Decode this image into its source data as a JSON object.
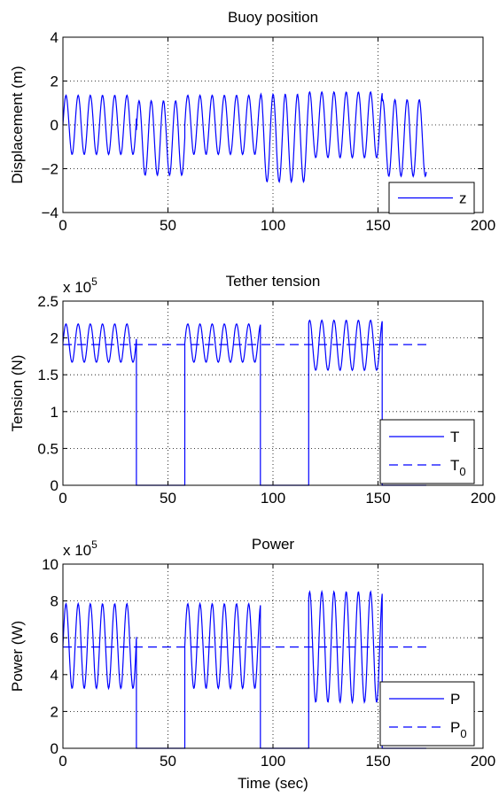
{
  "chart_data": [
    {
      "type": "line",
      "title": "Buoy position",
      "ylabel": "Displacement (m)",
      "xlabel": "",
      "exponent_label": "",
      "xlim": [
        0,
        200
      ],
      "ylim": [
        -4,
        4
      ],
      "xticks": [
        0,
        50,
        100,
        150,
        200
      ],
      "yticks": [
        -4,
        -2,
        0,
        2,
        4
      ],
      "ytick_labels": [
        "−4",
        "−2",
        "0",
        "2",
        "4"
      ],
      "grid": true,
      "legend_position": "bottom-right",
      "series": [
        {
          "name": "z",
          "style": "solid",
          "color": "#0000ff",
          "wave_period": 5.8,
          "segments": [
            {
              "t_start": 0,
              "t_end": 35,
              "mean": 0,
              "amplitude": 1.35
            },
            {
              "t_start": 35,
              "t_end": 58,
              "mean": -0.6,
              "amplitude": 1.7
            },
            {
              "t_start": 58,
              "t_end": 94,
              "mean": 0,
              "amplitude": 1.35
            },
            {
              "t_start": 94,
              "t_end": 117,
              "mean": -0.6,
              "amplitude": 2.0
            },
            {
              "t_start": 117,
              "t_end": 152,
              "mean": 0,
              "amplitude": 1.5
            },
            {
              "t_start": 152,
              "t_end": 173,
              "mean": -0.6,
              "amplitude": 1.75
            }
          ]
        }
      ]
    },
    {
      "type": "line",
      "title": "Tether tension",
      "ylabel": "Tension (N)",
      "xlabel": "",
      "exponent_label": "x 10",
      "exponent_power": "5",
      "xlim": [
        0,
        200
      ],
      "ylim": [
        0,
        2.5
      ],
      "xticks": [
        0,
        50,
        100,
        150,
        200
      ],
      "yticks": [
        0,
        0.5,
        1,
        1.5,
        2,
        2.5
      ],
      "ytick_labels": [
        "0",
        "0.5",
        "1",
        "1.5",
        "2",
        "2.5"
      ],
      "grid": true,
      "legend_position": "bottom-right",
      "series": [
        {
          "name": "T",
          "style": "solid",
          "color": "#0000ff",
          "wave_period": 5.8,
          "segments": [
            {
              "t_start": 0,
              "t_end": 35,
              "mean": 1.93,
              "amplitude": 0.26
            },
            {
              "t_start": 35,
              "t_end": 58,
              "mean": 0,
              "amplitude": 0
            },
            {
              "t_start": 58,
              "t_end": 94,
              "mean": 1.93,
              "amplitude": 0.26
            },
            {
              "t_start": 94,
              "t_end": 117,
              "mean": 0,
              "amplitude": 0
            },
            {
              "t_start": 117,
              "t_end": 152,
              "mean": 1.9,
              "amplitude": 0.34
            },
            {
              "t_start": 152,
              "t_end": 173,
              "mean": 0,
              "amplitude": 0
            }
          ]
        },
        {
          "name": "T",
          "subscript": "0",
          "style": "dashed",
          "color": "#0000ff",
          "x": [
            0,
            173
          ],
          "y": [
            1.91,
            1.91
          ]
        }
      ]
    },
    {
      "type": "line",
      "title": "Power",
      "ylabel": "Power (W)",
      "xlabel": "Time (sec)",
      "exponent_label": "x 10",
      "exponent_power": "5",
      "xlim": [
        0,
        200
      ],
      "ylim": [
        0,
        10
      ],
      "xticks": [
        0,
        50,
        100,
        150,
        200
      ],
      "yticks": [
        0,
        2,
        4,
        6,
        8,
        10
      ],
      "ytick_labels": [
        "0",
        "2",
        "4",
        "6",
        "8",
        "10"
      ],
      "grid": true,
      "legend_position": "bottom-right",
      "series": [
        {
          "name": "P",
          "style": "solid",
          "color": "#0000ff",
          "wave_period": 5.8,
          "segments": [
            {
              "t_start": 0,
              "t_end": 35,
              "mean": 5.55,
              "amplitude": 2.3
            },
            {
              "t_start": 35,
              "t_end": 58,
              "mean": 0,
              "amplitude": 0
            },
            {
              "t_start": 58,
              "t_end": 94,
              "mean": 5.55,
              "amplitude": 2.3
            },
            {
              "t_start": 94,
              "t_end": 117,
              "mean": 0,
              "amplitude": 0
            },
            {
              "t_start": 117,
              "t_end": 152,
              "mean": 5.5,
              "amplitude": 3.0
            },
            {
              "t_start": 152,
              "t_end": 173,
              "mean": 0,
              "amplitude": 0
            }
          ]
        },
        {
          "name": "P",
          "subscript": "0",
          "style": "dashed",
          "color": "#0000ff",
          "x": [
            0,
            173
          ],
          "y": [
            5.5,
            5.5
          ]
        }
      ]
    }
  ]
}
